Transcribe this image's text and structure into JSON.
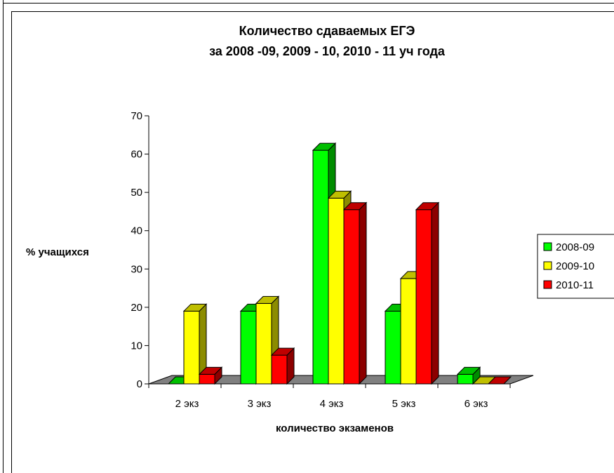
{
  "chart_data": {
    "type": "bar",
    "title_line1": "Количество сдаваемых ЕГЭ",
    "title_line2": "за 2008 -09, 2009 - 10, 2010 - 11 уч года",
    "xlabel": "количество экзаменов",
    "ylabel": "% учащихся",
    "ylim": [
      0,
      70
    ],
    "yticks": [
      "0",
      "10",
      "20",
      "30",
      "40",
      "50",
      "60",
      "70"
    ],
    "categories": [
      "2 экз",
      "3 экз",
      "4 экз",
      "5 экз",
      "6 экз"
    ],
    "series": [
      {
        "name": "2008-09",
        "color": "#00ff00",
        "values": [
          0,
          19,
          61,
          19,
          2.5
        ]
      },
      {
        "name": "2009-10",
        "color": "#ffff00",
        "values": [
          19,
          21,
          48.5,
          27.5,
          0
        ]
      },
      {
        "name": "2010-11",
        "color": "#ff0000",
        "values": [
          2.5,
          7.5,
          45.5,
          45.5,
          0
        ]
      }
    ],
    "legend_position": "right",
    "grid": false
  }
}
